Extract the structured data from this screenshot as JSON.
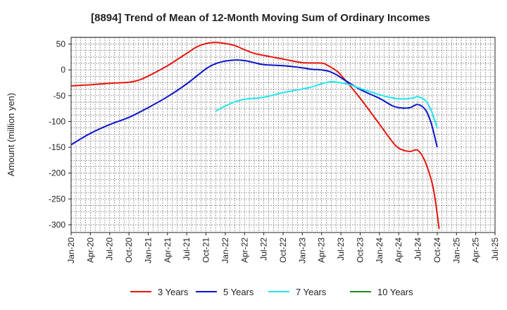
{
  "chart_data": {
    "type": "line",
    "title": "[8894]  Trend of Mean of 12-Month Moving Sum of Ordinary Incomes",
    "xlabel": "",
    "ylabel": "Amount (million yen)",
    "ylim": [
      -315,
      63
    ],
    "yticks": [
      50,
      0,
      -50,
      -100,
      -150,
      -200,
      -250,
      -300
    ],
    "x_categories": [
      "Jan-20",
      "Apr-20",
      "Jul-20",
      "Oct-20",
      "Jan-21",
      "Apr-21",
      "Jul-21",
      "Oct-21",
      "Jan-22",
      "Apr-22",
      "Jul-22",
      "Oct-22",
      "Jan-23",
      "Apr-23",
      "Jul-23",
      "Oct-23",
      "Jan-24",
      "Apr-24",
      "Jul-24",
      "Oct-24",
      "Jan-25",
      "Apr-25",
      "Jul-25"
    ],
    "grid": true,
    "legend_position": "bottom",
    "series": [
      {
        "name": "3 Years",
        "color": "#e8140c",
        "points": [
          [
            0,
            -31
          ],
          [
            1,
            -29
          ],
          [
            2,
            -26
          ],
          [
            3,
            -24
          ],
          [
            3.5,
            -20
          ],
          [
            4,
            -12
          ],
          [
            5,
            8
          ],
          [
            6,
            32
          ],
          [
            6.5,
            44
          ],
          [
            7,
            51
          ],
          [
            7.5,
            53
          ],
          [
            8,
            51
          ],
          [
            8.5,
            47
          ],
          [
            9,
            39
          ],
          [
            9.5,
            32
          ],
          [
            10,
            28
          ],
          [
            11,
            21
          ],
          [
            12,
            14
          ],
          [
            13,
            13
          ],
          [
            13.3,
            9
          ],
          [
            13.7,
            0
          ],
          [
            14,
            -10
          ],
          [
            15,
            -55
          ],
          [
            16,
            -105
          ],
          [
            16.8,
            -145
          ],
          [
            17.2,
            -155
          ],
          [
            17.6,
            -158
          ],
          [
            18,
            -156
          ],
          [
            18.4,
            -180
          ],
          [
            18.8,
            -230
          ],
          [
            19.1,
            -308
          ]
        ]
      },
      {
        "name": "5 Years",
        "color": "#0a14c8",
        "points": [
          [
            0,
            -145
          ],
          [
            1,
            -123
          ],
          [
            2,
            -106
          ],
          [
            3,
            -92
          ],
          [
            4,
            -73
          ],
          [
            5,
            -52
          ],
          [
            6,
            -27
          ],
          [
            7,
            2
          ],
          [
            7.5,
            12
          ],
          [
            8,
            17
          ],
          [
            8.5,
            19
          ],
          [
            9,
            18
          ],
          [
            9.5,
            14
          ],
          [
            10,
            10
          ],
          [
            11,
            8
          ],
          [
            12,
            4
          ],
          [
            12.5,
            1
          ],
          [
            13,
            0
          ],
          [
            13.4,
            -3
          ],
          [
            13.8,
            -10
          ],
          [
            14,
            -15
          ],
          [
            15,
            -38
          ],
          [
            16,
            -55
          ],
          [
            16.7,
            -70
          ],
          [
            17.2,
            -74
          ],
          [
            17.6,
            -73
          ],
          [
            18,
            -67
          ],
          [
            18.4,
            -78
          ],
          [
            18.7,
            -105
          ],
          [
            19.0,
            -150
          ]
        ]
      },
      {
        "name": "7 Years",
        "color": "#1ee8f0",
        "points": [
          [
            7.5,
            -80
          ],
          [
            8,
            -70
          ],
          [
            8.5,
            -62
          ],
          [
            9,
            -57
          ],
          [
            10,
            -53
          ],
          [
            11,
            -44
          ],
          [
            12,
            -37
          ],
          [
            12.5,
            -33
          ],
          [
            13,
            -27
          ],
          [
            13.5,
            -23
          ],
          [
            14,
            -25
          ],
          [
            14.5,
            -29
          ],
          [
            15,
            -36
          ],
          [
            15.5,
            -42
          ],
          [
            16,
            -48
          ],
          [
            16.5,
            -53
          ],
          [
            17,
            -56
          ],
          [
            17.4,
            -56
          ],
          [
            17.8,
            -54
          ],
          [
            18,
            -52
          ],
          [
            18.4,
            -60
          ],
          [
            18.7,
            -80
          ],
          [
            19.0,
            -112
          ]
        ]
      },
      {
        "name": "10 Years",
        "color": "#1e8c1e",
        "points": []
      }
    ]
  }
}
